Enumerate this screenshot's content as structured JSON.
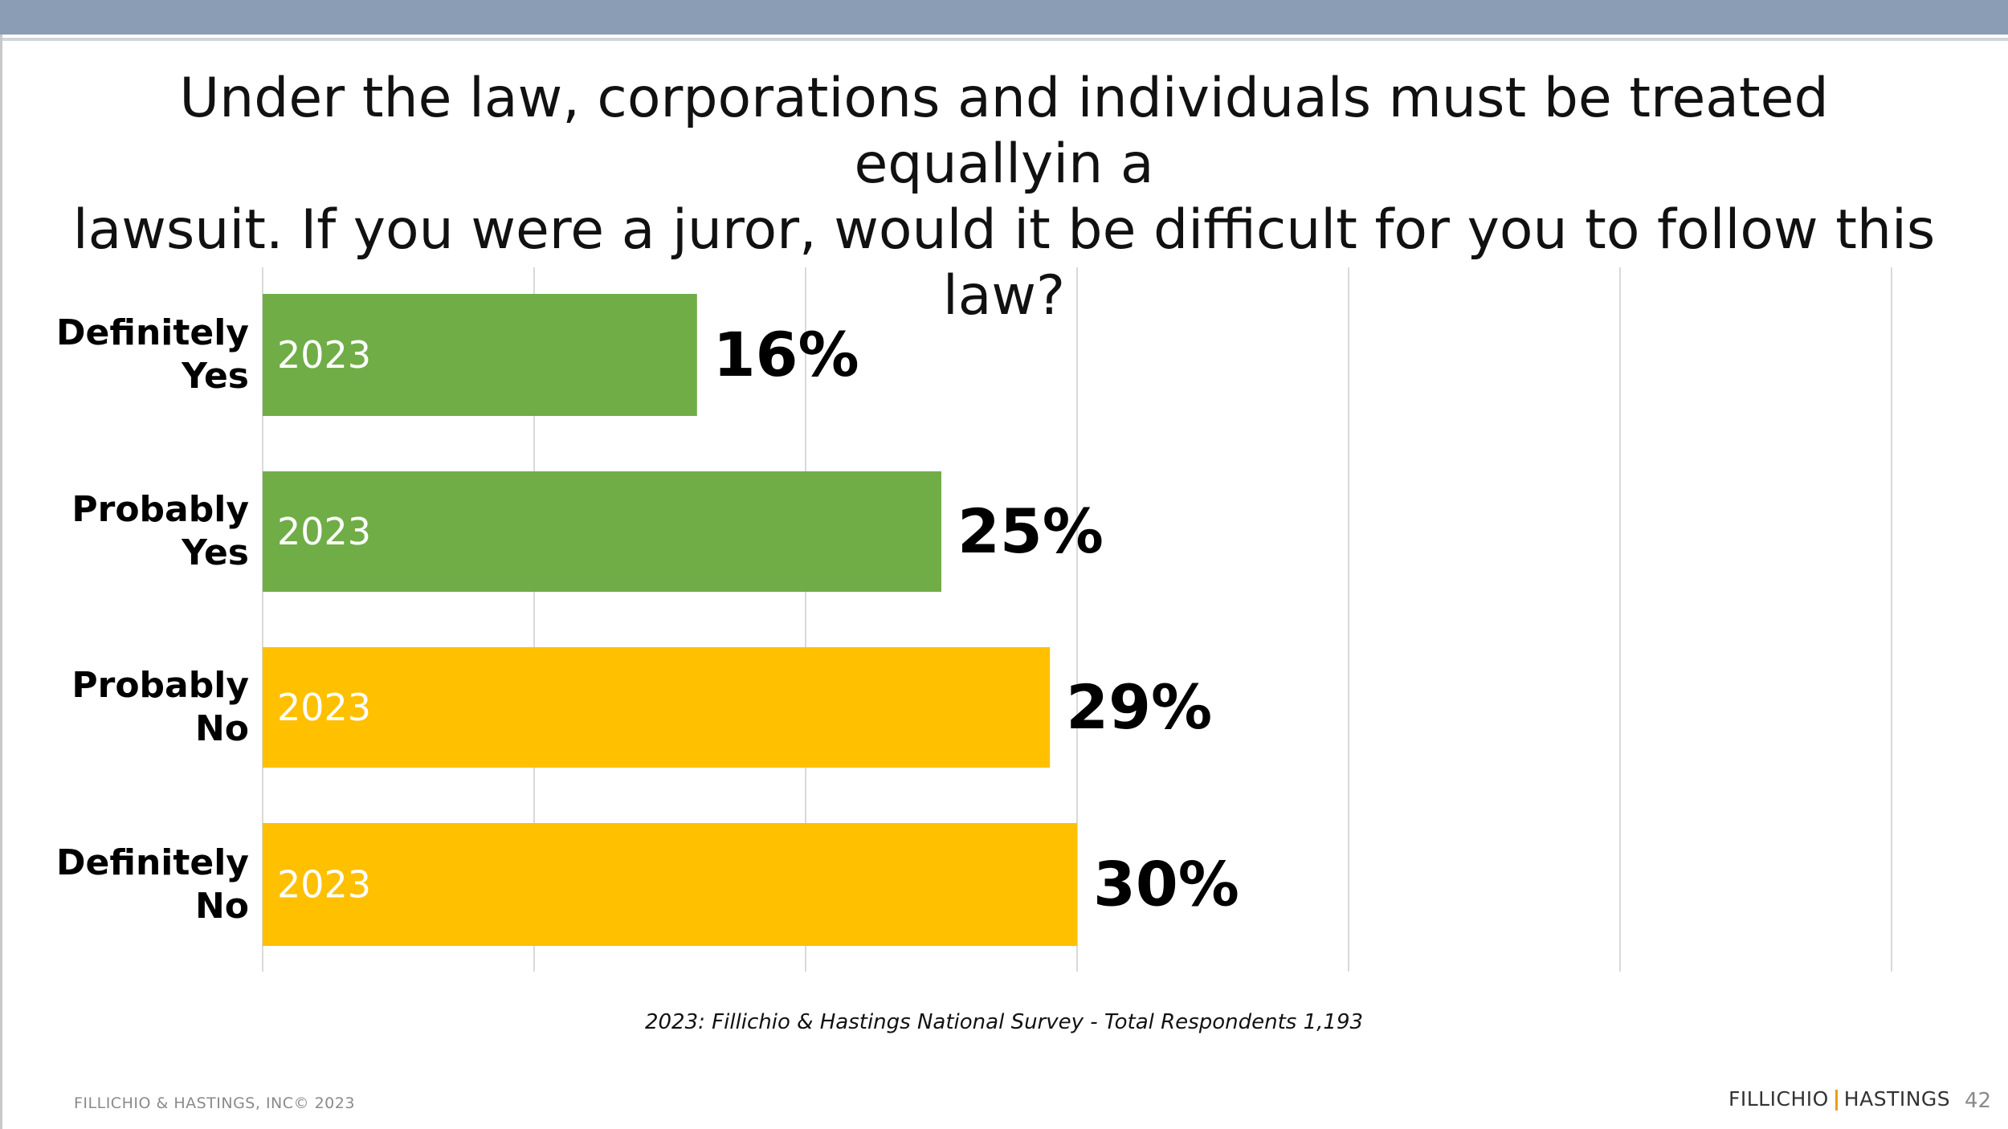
{
  "title_line1": "Under the law, corporations and individuals must be treated equallyin a",
  "title_line2": "lawsuit. If you were a juror, would it be difficult for you to follow this law?",
  "chart_data": {
    "type": "bar",
    "orientation": "horizontal",
    "categories": [
      [
        "Definitely",
        "Yes"
      ],
      [
        "Probably",
        "Yes"
      ],
      [
        "Probably",
        "No"
      ],
      [
        "Definitely",
        "No"
      ]
    ],
    "bar_text": "2023",
    "values": [
      16,
      25,
      29,
      30
    ],
    "value_labels": [
      "16%",
      "25%",
      "29%",
      "30%"
    ],
    "colors": [
      "#70ad47",
      "#70ad47",
      "#ffc000",
      "#ffc000"
    ],
    "xlim": [
      0,
      60
    ],
    "grid": true
  },
  "note": "2023: Fillichio & Hastings National Survey   - Total Respondents 1,193",
  "footer": {
    "copyright": "FILLICHIO & HASTINGS, INC© 2023",
    "brand_left": "FILLICHIO",
    "brand_right": "HASTINGS",
    "page_number": "42"
  }
}
